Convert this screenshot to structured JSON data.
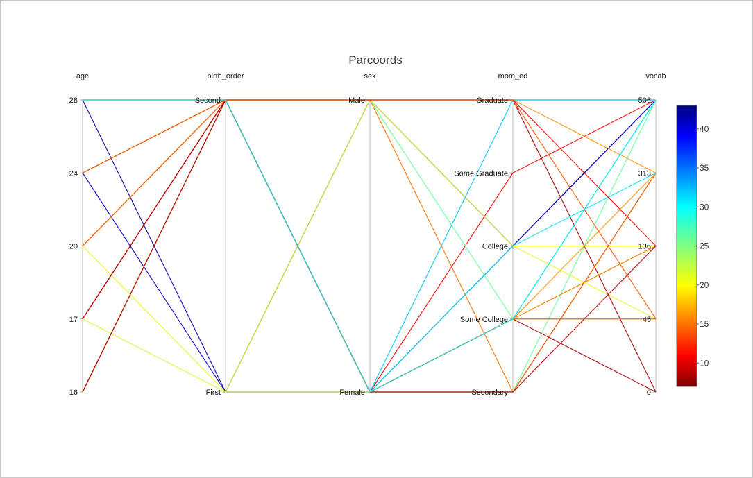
{
  "chart_data": {
    "type": "parallel_coordinates",
    "title": "Parcoords",
    "dimensions": [
      {
        "name": "age",
        "ticks": [
          "16",
          "17",
          "20",
          "24",
          "28"
        ]
      },
      {
        "name": "birth_order",
        "ticks": [
          "First",
          "Second"
        ]
      },
      {
        "name": "sex",
        "ticks": [
          "Female",
          "Male"
        ]
      },
      {
        "name": "mom_ed",
        "ticks": [
          "Secondary",
          "Some College",
          "College",
          "Some Graduate",
          "Graduate"
        ]
      },
      {
        "name": "vocab",
        "ticks": [
          "0",
          "45",
          "136",
          "313",
          "506"
        ]
      }
    ],
    "colorscale": "jet",
    "color_range": [
      7,
      43
    ],
    "colorbar_ticks": [
      "10",
      "15",
      "20",
      "25",
      "30",
      "35",
      "40"
    ],
    "records": [
      [
        "28",
        "Second",
        "Female",
        "Some College",
        "45",
        20
      ],
      [
        "28",
        "First",
        "Male",
        "College",
        "506",
        42
      ],
      [
        "24",
        "Second",
        "Female",
        "College",
        "45",
        21
      ],
      [
        "24",
        "First",
        "Female",
        "College",
        "506",
        41
      ],
      [
        "20",
        "Second",
        "Female",
        "Some Graduate",
        "506",
        11
      ],
      [
        "20",
        "First",
        "Male",
        "College",
        "136",
        21
      ],
      [
        "17",
        "Second",
        "Male",
        "Graduate",
        "0",
        8
      ],
      [
        "17",
        "First",
        "Female",
        "Some College",
        "136",
        22
      ],
      [
        "16",
        "Second",
        "Female",
        "Secondary",
        "313",
        8
      ],
      [
        "28",
        "Second",
        "Male",
        "Graduate",
        "506",
        31
      ],
      [
        "24",
        "Second",
        "Female",
        "Graduate",
        "506",
        32
      ],
      [
        "20",
        "Second",
        "Male",
        "Some College",
        "506",
        26
      ],
      [
        "28",
        "Second",
        "Female",
        "Secondary",
        "506",
        26
      ],
      [
        "24",
        "Second",
        "Male",
        "Secondary",
        "313",
        15
      ],
      [
        "20",
        "Second",
        "Female",
        "Some College",
        "313",
        16
      ],
      [
        "17",
        "Second",
        "Female",
        "College",
        "313",
        31
      ],
      [
        "16",
        "Second",
        "Male",
        "Graduate",
        "313",
        16
      ],
      [
        "17",
        "Second",
        "Male",
        "Graduate",
        "136",
        11
      ],
      [
        "20",
        "Second",
        "Male",
        "Graduate",
        "45",
        14
      ],
      [
        "16",
        "Second",
        "Female",
        "Some College",
        "0",
        8
      ],
      [
        "28",
        "Second",
        "Female",
        "Some College",
        "136",
        15
      ],
      [
        "17",
        "Second",
        "Female",
        "Secondary",
        "136",
        9
      ],
      [
        "24",
        "Second",
        "Female",
        "Some College",
        "45",
        14
      ],
      [
        "28",
        "Second",
        "Female",
        "Some College",
        "506",
        31
      ]
    ]
  }
}
